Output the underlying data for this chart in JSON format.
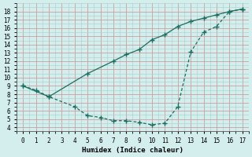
{
  "xlabel": "Humidex (Indice chaleur)",
  "xlim": [
    -0.5,
    17.5
  ],
  "ylim": [
    3.5,
    19.0
  ],
  "xticks": [
    0,
    1,
    2,
    3,
    4,
    5,
    6,
    7,
    8,
    9,
    10,
    11,
    12,
    13,
    14,
    15,
    16,
    17
  ],
  "yticks": [
    4,
    5,
    6,
    7,
    8,
    9,
    10,
    11,
    12,
    13,
    14,
    15,
    16,
    17,
    18
  ],
  "line_color": "#1a6e60",
  "bg_color": "#d4eeed",
  "grid_color_minor": "#c8e0dc",
  "grid_color_major": "#b0ccca",
  "curve1_x": [
    0,
    1,
    2,
    4,
    5,
    6,
    7,
    8,
    9,
    10,
    11,
    12,
    13,
    14,
    15,
    16,
    17
  ],
  "curve1_y": [
    9.0,
    8.5,
    7.7,
    6.5,
    5.4,
    5.2,
    4.8,
    4.8,
    4.6,
    4.3,
    4.5,
    6.5,
    13.1,
    15.5,
    16.2,
    18.0,
    18.3
  ],
  "curve2_x": [
    0,
    2,
    5,
    7,
    8,
    9,
    10,
    11,
    12,
    13,
    14,
    15,
    16,
    17
  ],
  "curve2_y": [
    9.0,
    7.7,
    10.5,
    12.0,
    12.8,
    13.4,
    14.6,
    15.2,
    16.2,
    16.8,
    17.2,
    17.6,
    18.0,
    18.3
  ],
  "marker": "+",
  "markersize": 4.0,
  "linewidth": 0.9
}
